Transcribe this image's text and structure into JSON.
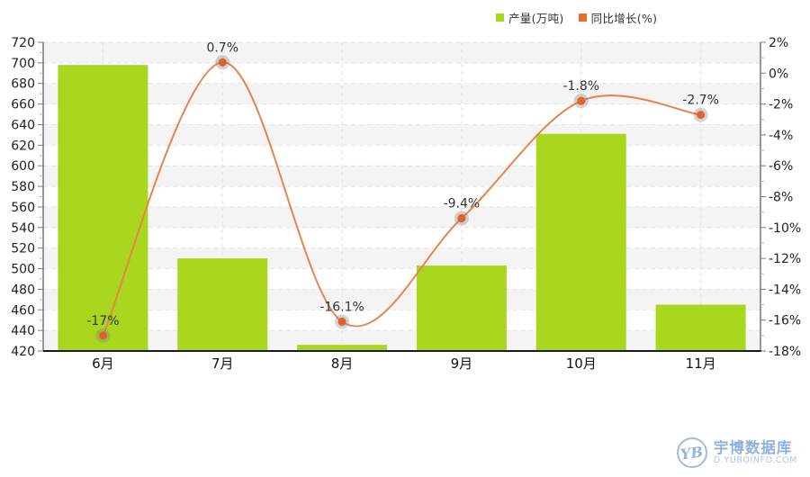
{
  "legend": {
    "items": [
      {
        "label": "产量(万吨)",
        "color": "#a8d71e"
      },
      {
        "label": "同比增长(%)",
        "color": "#e2702f"
      }
    ]
  },
  "chart_data": {
    "type": "bar+line",
    "categories": [
      "6月",
      "7月",
      "8月",
      "9月",
      "10月",
      "11月"
    ],
    "series": [
      {
        "name": "产量(万吨)",
        "type": "bar",
        "axis": "left",
        "color": "#a8d71e",
        "values": [
          698,
          510,
          426,
          503,
          631,
          465
        ]
      },
      {
        "name": "同比增长(%)",
        "type": "line",
        "axis": "right",
        "color": "#e8834e",
        "marker_color": "#df6228",
        "values": [
          -17,
          0.7,
          -16.1,
          -9.4,
          -1.8,
          -2.7
        ],
        "point_labels": [
          "-17%",
          "0.7%",
          "-16.1%",
          "-9.4%",
          "-1.8%",
          "-2.7%"
        ]
      }
    ],
    "left_axis": {
      "min": 420,
      "max": 720,
      "step": 20
    },
    "right_axis": {
      "min": -18,
      "max": 2,
      "step": 2,
      "suffix": "%"
    },
    "legend_position": "top",
    "grid": {
      "horizontal_dashed": true,
      "vertical_dashed": true,
      "zebra_bands": true
    }
  },
  "style_colors": {
    "band_gray": "#f4f4f4",
    "gridline": "#e3e3e3",
    "axis_line": "#333333",
    "major_tick": "#7d7d7d",
    "minor_tick": "#ef9a8a",
    "tick_label": "#222222",
    "data_label": "#333333",
    "marker_halo": "rgba(130,130,130,0.35)"
  },
  "watermark": {
    "brand": "宇博数据库",
    "domain": "D.YUBOINFO.COM",
    "monogram": "YB",
    "color": "#8fafd9"
  }
}
